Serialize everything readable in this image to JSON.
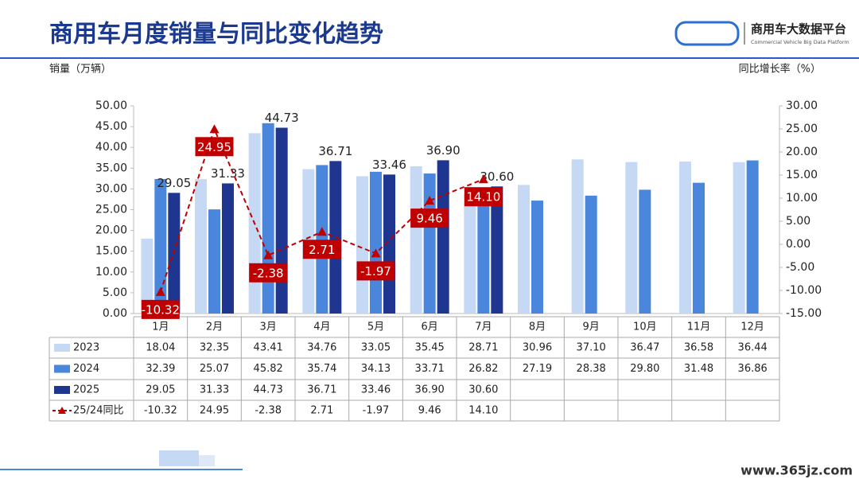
{
  "header": {
    "title": "商用车月度销量与同比变化趋势",
    "logo": "商用车大数据平台",
    "logo_sub": "Commercial Vehicle Big Data Platform",
    "watermark": "www.365jz.com"
  },
  "chart_data": {
    "type": "bar",
    "y_label": "销量（万辆）",
    "y2_label": "同比增长率（%）",
    "categories": [
      "1月",
      "2月",
      "3月",
      "4月",
      "5月",
      "6月",
      "7月",
      "8月",
      "9月",
      "10月",
      "11月",
      "12月"
    ],
    "ylim": [
      0,
      50
    ],
    "yticks": [
      {
        "value": 0,
        "label": "0.00"
      },
      {
        "value": 5,
        "label": "5.00"
      },
      {
        "value": 10,
        "label": "10.00"
      },
      {
        "value": 15,
        "label": "15.00"
      },
      {
        "value": 20,
        "label": "20.00"
      },
      {
        "value": 25,
        "label": "25.00"
      },
      {
        "value": 30,
        "label": "30.00"
      },
      {
        "value": 35,
        "label": "35.00"
      },
      {
        "value": 40,
        "label": "40.00"
      },
      {
        "value": 45,
        "label": "45.00"
      },
      {
        "value": 50,
        "label": "50.00"
      }
    ],
    "y2lim": [
      -15,
      30
    ],
    "y2ticks": [
      {
        "value": -15,
        "label": "-15.00"
      },
      {
        "value": -10,
        "label": "-10.00"
      },
      {
        "value": -5,
        "label": "-5.00"
      },
      {
        "value": 0,
        "label": "0.00"
      },
      {
        "value": 5,
        "label": "5.00"
      },
      {
        "value": 10,
        "label": "10.00"
      },
      {
        "value": 15,
        "label": "15.00"
      },
      {
        "value": 20,
        "label": "20.00"
      },
      {
        "value": 25,
        "label": "25.00"
      },
      {
        "value": 30,
        "label": "30.00"
      }
    ],
    "series": [
      {
        "name": "2023",
        "color": "#c6d9f4",
        "values": [
          18.04,
          32.35,
          43.41,
          34.76,
          33.05,
          35.45,
          28.71,
          30.96,
          37.1,
          36.47,
          36.58,
          36.44
        ],
        "value_labels": [
          "18.04",
          "32.35",
          "43.41",
          "34.76",
          "33.05",
          "35.45",
          "28.71",
          "30.96",
          "37.10",
          "36.47",
          "36.58",
          "36.44"
        ]
      },
      {
        "name": "2024",
        "color": "#4a86dc",
        "values": [
          32.39,
          25.07,
          45.82,
          35.74,
          34.13,
          33.71,
          26.82,
          27.19,
          28.38,
          29.8,
          31.48,
          36.86
        ],
        "value_labels": [
          "32.39",
          "25.07",
          "45.82",
          "35.74",
          "34.13",
          "33.71",
          "26.82",
          "27.19",
          "28.38",
          "29.80",
          "31.48",
          "36.86"
        ]
      },
      {
        "name": "2025",
        "color": "#1f3690",
        "show_labels": true,
        "values": [
          29.05,
          31.33,
          44.73,
          36.71,
          33.46,
          36.9,
          30.6,
          null,
          null,
          null,
          null,
          null
        ],
        "value_labels": [
          "29.05",
          "31.33",
          "44.73",
          "36.71",
          "33.46",
          "36.90",
          "30.60",
          null,
          null,
          null,
          null,
          null
        ]
      },
      {
        "name": "25/24同比",
        "type": "line",
        "axis": "y2",
        "color": "#c00000",
        "show_labels": true,
        "values": [
          -10.32,
          24.95,
          -2.38,
          2.71,
          -1.97,
          9.46,
          14.1,
          null,
          null,
          null,
          null,
          null
        ],
        "value_labels": [
          "-10.32",
          "24.95",
          "-2.38",
          "2.71",
          "-1.97",
          "9.46",
          "14.10",
          null,
          null,
          null,
          null,
          null
        ]
      }
    ]
  }
}
